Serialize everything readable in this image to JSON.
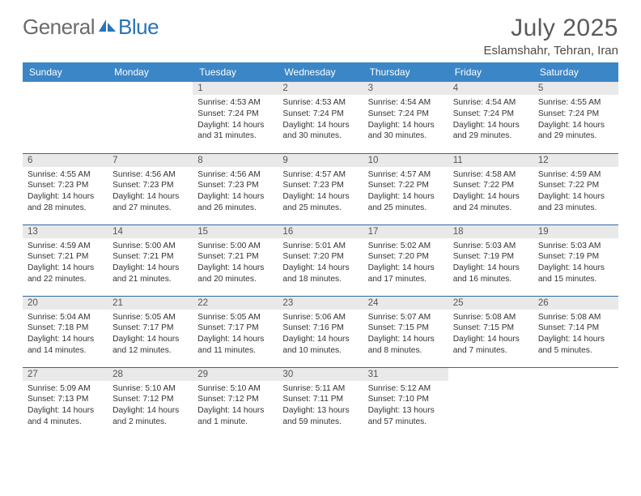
{
  "logo": {
    "part1": "General",
    "part2": "Blue"
  },
  "title": "July 2025",
  "location": "Eslamshahr, Tehran, Iran",
  "header_bg": "#3b86c6",
  "row_border": "#2e6aa3",
  "daynum_bg": "#e9e9e9",
  "weekdays": [
    "Sunday",
    "Monday",
    "Tuesday",
    "Wednesday",
    "Thursday",
    "Friday",
    "Saturday"
  ],
  "weeks": [
    [
      {
        "n": "",
        "sr": "",
        "ss": "",
        "dl": "",
        "empty": true
      },
      {
        "n": "",
        "sr": "",
        "ss": "",
        "dl": "",
        "empty": true
      },
      {
        "n": "1",
        "sr": "Sunrise: 4:53 AM",
        "ss": "Sunset: 7:24 PM",
        "dl": "Daylight: 14 hours and 31 minutes."
      },
      {
        "n": "2",
        "sr": "Sunrise: 4:53 AM",
        "ss": "Sunset: 7:24 PM",
        "dl": "Daylight: 14 hours and 30 minutes."
      },
      {
        "n": "3",
        "sr": "Sunrise: 4:54 AM",
        "ss": "Sunset: 7:24 PM",
        "dl": "Daylight: 14 hours and 30 minutes."
      },
      {
        "n": "4",
        "sr": "Sunrise: 4:54 AM",
        "ss": "Sunset: 7:24 PM",
        "dl": "Daylight: 14 hours and 29 minutes."
      },
      {
        "n": "5",
        "sr": "Sunrise: 4:55 AM",
        "ss": "Sunset: 7:24 PM",
        "dl": "Daylight: 14 hours and 29 minutes."
      }
    ],
    [
      {
        "n": "6",
        "sr": "Sunrise: 4:55 AM",
        "ss": "Sunset: 7:23 PM",
        "dl": "Daylight: 14 hours and 28 minutes."
      },
      {
        "n": "7",
        "sr": "Sunrise: 4:56 AM",
        "ss": "Sunset: 7:23 PM",
        "dl": "Daylight: 14 hours and 27 minutes."
      },
      {
        "n": "8",
        "sr": "Sunrise: 4:56 AM",
        "ss": "Sunset: 7:23 PM",
        "dl": "Daylight: 14 hours and 26 minutes."
      },
      {
        "n": "9",
        "sr": "Sunrise: 4:57 AM",
        "ss": "Sunset: 7:23 PM",
        "dl": "Daylight: 14 hours and 25 minutes."
      },
      {
        "n": "10",
        "sr": "Sunrise: 4:57 AM",
        "ss": "Sunset: 7:22 PM",
        "dl": "Daylight: 14 hours and 25 minutes."
      },
      {
        "n": "11",
        "sr": "Sunrise: 4:58 AM",
        "ss": "Sunset: 7:22 PM",
        "dl": "Daylight: 14 hours and 24 minutes."
      },
      {
        "n": "12",
        "sr": "Sunrise: 4:59 AM",
        "ss": "Sunset: 7:22 PM",
        "dl": "Daylight: 14 hours and 23 minutes."
      }
    ],
    [
      {
        "n": "13",
        "sr": "Sunrise: 4:59 AM",
        "ss": "Sunset: 7:21 PM",
        "dl": "Daylight: 14 hours and 22 minutes."
      },
      {
        "n": "14",
        "sr": "Sunrise: 5:00 AM",
        "ss": "Sunset: 7:21 PM",
        "dl": "Daylight: 14 hours and 21 minutes."
      },
      {
        "n": "15",
        "sr": "Sunrise: 5:00 AM",
        "ss": "Sunset: 7:21 PM",
        "dl": "Daylight: 14 hours and 20 minutes."
      },
      {
        "n": "16",
        "sr": "Sunrise: 5:01 AM",
        "ss": "Sunset: 7:20 PM",
        "dl": "Daylight: 14 hours and 18 minutes."
      },
      {
        "n": "17",
        "sr": "Sunrise: 5:02 AM",
        "ss": "Sunset: 7:20 PM",
        "dl": "Daylight: 14 hours and 17 minutes."
      },
      {
        "n": "18",
        "sr": "Sunrise: 5:03 AM",
        "ss": "Sunset: 7:19 PM",
        "dl": "Daylight: 14 hours and 16 minutes."
      },
      {
        "n": "19",
        "sr": "Sunrise: 5:03 AM",
        "ss": "Sunset: 7:19 PM",
        "dl": "Daylight: 14 hours and 15 minutes."
      }
    ],
    [
      {
        "n": "20",
        "sr": "Sunrise: 5:04 AM",
        "ss": "Sunset: 7:18 PM",
        "dl": "Daylight: 14 hours and 14 minutes."
      },
      {
        "n": "21",
        "sr": "Sunrise: 5:05 AM",
        "ss": "Sunset: 7:17 PM",
        "dl": "Daylight: 14 hours and 12 minutes."
      },
      {
        "n": "22",
        "sr": "Sunrise: 5:05 AM",
        "ss": "Sunset: 7:17 PM",
        "dl": "Daylight: 14 hours and 11 minutes."
      },
      {
        "n": "23",
        "sr": "Sunrise: 5:06 AM",
        "ss": "Sunset: 7:16 PM",
        "dl": "Daylight: 14 hours and 10 minutes."
      },
      {
        "n": "24",
        "sr": "Sunrise: 5:07 AM",
        "ss": "Sunset: 7:15 PM",
        "dl": "Daylight: 14 hours and 8 minutes."
      },
      {
        "n": "25",
        "sr": "Sunrise: 5:08 AM",
        "ss": "Sunset: 7:15 PM",
        "dl": "Daylight: 14 hours and 7 minutes."
      },
      {
        "n": "26",
        "sr": "Sunrise: 5:08 AM",
        "ss": "Sunset: 7:14 PM",
        "dl": "Daylight: 14 hours and 5 minutes."
      }
    ],
    [
      {
        "n": "27",
        "sr": "Sunrise: 5:09 AM",
        "ss": "Sunset: 7:13 PM",
        "dl": "Daylight: 14 hours and 4 minutes."
      },
      {
        "n": "28",
        "sr": "Sunrise: 5:10 AM",
        "ss": "Sunset: 7:12 PM",
        "dl": "Daylight: 14 hours and 2 minutes."
      },
      {
        "n": "29",
        "sr": "Sunrise: 5:10 AM",
        "ss": "Sunset: 7:12 PM",
        "dl": "Daylight: 14 hours and 1 minute."
      },
      {
        "n": "30",
        "sr": "Sunrise: 5:11 AM",
        "ss": "Sunset: 7:11 PM",
        "dl": "Daylight: 13 hours and 59 minutes."
      },
      {
        "n": "31",
        "sr": "Sunrise: 5:12 AM",
        "ss": "Sunset: 7:10 PM",
        "dl": "Daylight: 13 hours and 57 minutes."
      },
      {
        "n": "",
        "sr": "",
        "ss": "",
        "dl": "",
        "empty": true
      },
      {
        "n": "",
        "sr": "",
        "ss": "",
        "dl": "",
        "empty": true
      }
    ]
  ]
}
